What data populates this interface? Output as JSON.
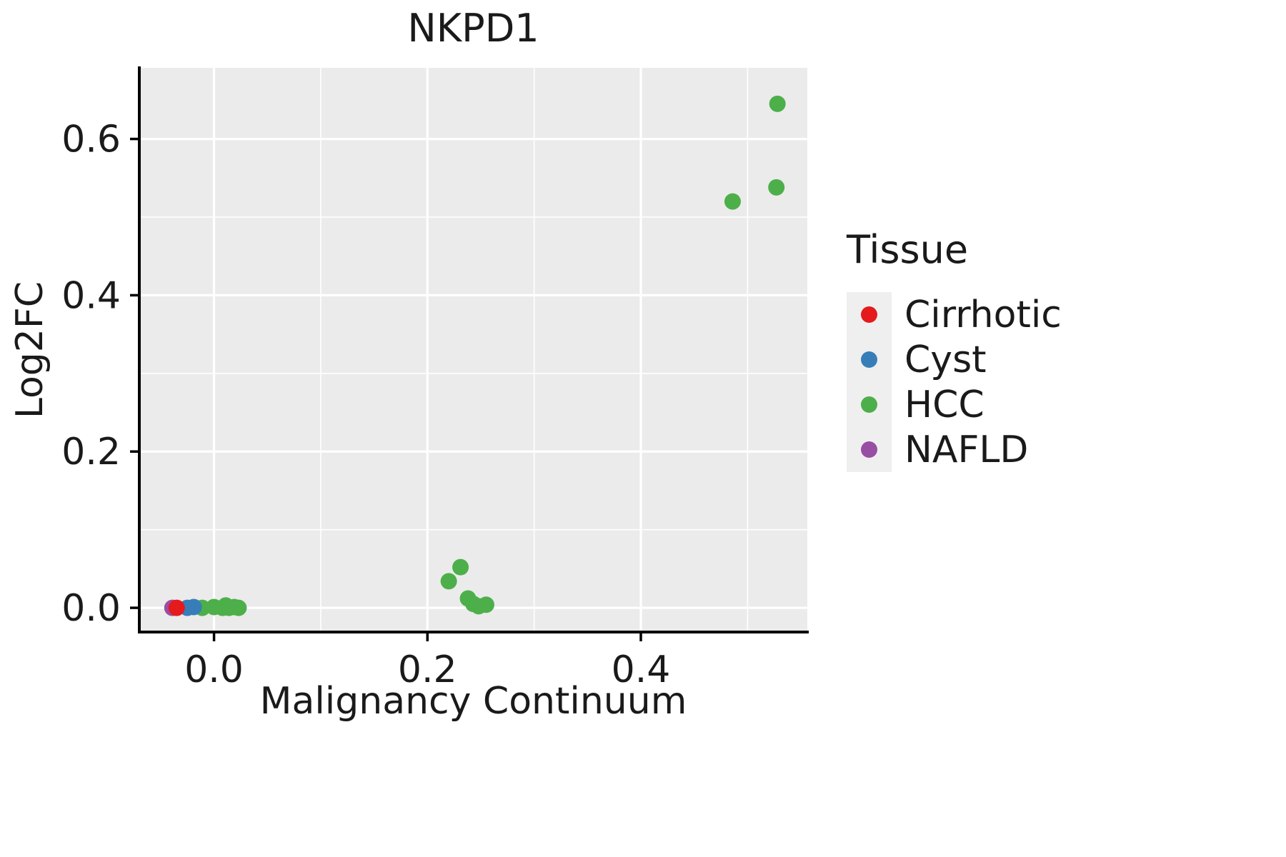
{
  "chart_data": {
    "type": "scatter",
    "title": "NKPD1",
    "xlabel": "Malignancy Continuum",
    "ylabel": "Log2FC",
    "legend_title": "Tissue",
    "legend_position": "right",
    "grid": true,
    "panel_color": "#EBEBEB",
    "grid_color": "#FFFFFF",
    "xlim": [
      -0.07,
      0.556
    ],
    "ylim": [
      -0.031,
      0.691
    ],
    "xticks": [
      0.0,
      0.2,
      0.4
    ],
    "yticks": [
      0.0,
      0.2,
      0.4,
      0.6
    ],
    "x_minor": [
      -0.0,
      0.1,
      0.3,
      0.5
    ],
    "y_minor": [
      0.1,
      0.3,
      0.5
    ],
    "series": [
      {
        "name": "Cirrhotic",
        "color": "#E41A1C",
        "points": [
          [
            -0.035,
            0.0
          ]
        ]
      },
      {
        "name": "Cyst",
        "color": "#377EB8",
        "points": [
          [
            -0.025,
            0.0
          ],
          [
            -0.019,
            0.001
          ]
        ]
      },
      {
        "name": "HCC",
        "color": "#4DAF4A",
        "points": [
          [
            -0.011,
            0.0
          ],
          [
            0.0,
            0.001
          ],
          [
            0.008,
            0.0
          ],
          [
            0.011,
            0.003
          ],
          [
            0.014,
            0.0
          ],
          [
            0.019,
            0.001
          ],
          [
            0.023,
            0.0
          ],
          [
            0.22,
            0.034
          ],
          [
            0.231,
            0.052
          ],
          [
            0.238,
            0.012
          ],
          [
            0.243,
            0.005
          ],
          [
            0.248,
            0.002
          ],
          [
            0.255,
            0.004
          ],
          [
            0.486,
            0.52
          ],
          [
            0.527,
            0.538
          ],
          [
            0.528,
            0.645
          ]
        ]
      },
      {
        "name": "NAFLD",
        "color": "#984EA3",
        "points": [
          [
            -0.039,
            0.0
          ]
        ]
      }
    ]
  }
}
